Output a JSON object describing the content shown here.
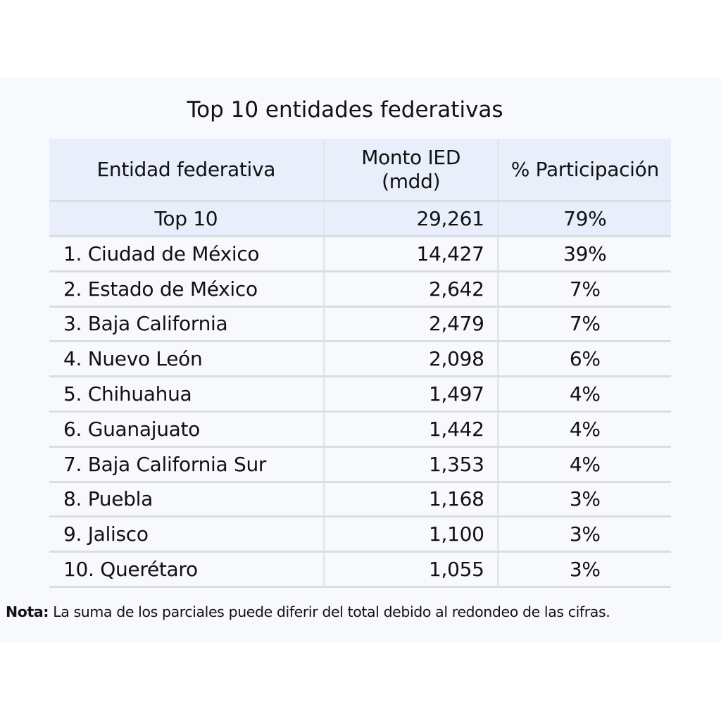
{
  "title": "Top 10 entidades federativas",
  "headers": [
    "Entidad federativa",
    "Monto IED (mdd)",
    "% Participación"
  ],
  "total": {
    "label": "Top 10",
    "amount": "29,261",
    "share": "79%"
  },
  "rows": [
    {
      "entity": "1. Ciudad de México",
      "amount": "14,427",
      "share": "39%"
    },
    {
      "entity": "2. Estado de México",
      "amount": "2,642",
      "share": "7%"
    },
    {
      "entity": "3. Baja California",
      "amount": "2,479",
      "share": "7%"
    },
    {
      "entity": "4. Nuevo León",
      "amount": "2,098",
      "share": "6%"
    },
    {
      "entity": "5. Chihuahua",
      "amount": "1,497",
      "share": "4%"
    },
    {
      "entity": "6. Guanajuato",
      "amount": "1,442",
      "share": "4%"
    },
    {
      "entity": "7. Baja California Sur",
      "amount": "1,353",
      "share": "4%"
    },
    {
      "entity": "8. Puebla",
      "amount": "1,168",
      "share": "3%"
    },
    {
      "entity": "9. Jalisco",
      "amount": "1,100",
      "share": "3%"
    },
    {
      "entity": "10. Querétaro",
      "amount": "1,055",
      "share": "3%"
    }
  ],
  "note": {
    "label": "Nota:",
    "text": " La suma de los parciales puede diferir del total debido al redondeo de las cifras."
  }
}
